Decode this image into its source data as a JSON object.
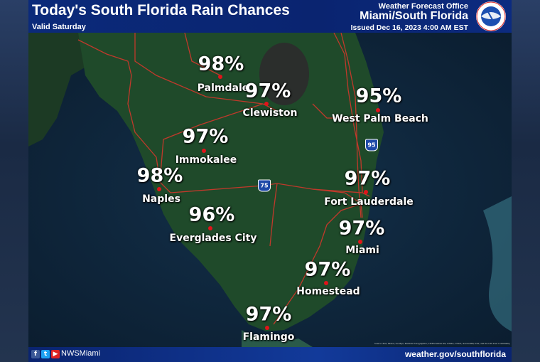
{
  "header": {
    "title": "Today's South Florida Rain Chances",
    "valid": "Valid Saturday",
    "office_label": "Weather Forecast Office",
    "office": "Miami/South Florida",
    "issued": "Issued Dec 16, 2023 4:00 AM EST",
    "logo": "National Weather Service"
  },
  "cities": [
    {
      "name": "Palmdale",
      "chance": "98%"
    },
    {
      "name": "Clewiston",
      "chance": "97%"
    },
    {
      "name": "West Palm Beach",
      "chance": "95%"
    },
    {
      "name": "Immokalee",
      "chance": "97%"
    },
    {
      "name": "Naples",
      "chance": "98%"
    },
    {
      "name": "Fort Lauderdale",
      "chance": "97%"
    },
    {
      "name": "Everglades City",
      "chance": "96%"
    },
    {
      "name": "Miami",
      "chance": "97%"
    },
    {
      "name": "Homestead",
      "chance": "97%"
    },
    {
      "name": "Flamingo",
      "chance": "97%"
    }
  ],
  "highways": {
    "i75": "75",
    "i95": "95"
  },
  "source": "Source: Esri, Maxar, GeoEye, Earthstar Geographics, CNES/Airbus DS, USDA, USGS, AeroGRID, IGN, and the GIS User Community",
  "footer": {
    "handle": "NWSMiami",
    "site": "weather.gov/southflorida",
    "social": [
      "facebook-icon",
      "twitter-icon",
      "youtube-icon"
    ]
  },
  "colors": {
    "header": "#0b2a7a",
    "land": "#1f4a2a",
    "city_dot": "#e0141a",
    "roads": "#c0392b"
  }
}
